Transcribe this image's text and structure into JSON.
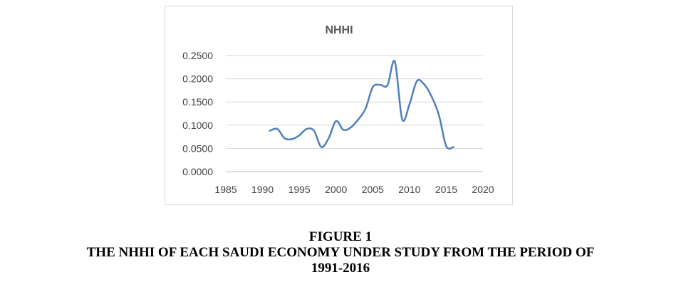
{
  "chart_data": {
    "type": "line",
    "title": "NHHI",
    "xlabel": "",
    "ylabel": "",
    "xlim": [
      1985,
      2020
    ],
    "ylim": [
      0,
      0.25
    ],
    "x_ticks": [
      "1985",
      "1990",
      "1995",
      "2000",
      "2005",
      "2010",
      "2015",
      "2020"
    ],
    "y_ticks": [
      "0.0000",
      "0.0500",
      "0.1000",
      "0.1500",
      "0.2000",
      "0.2500"
    ],
    "grid": "horizontal",
    "legend": "none",
    "series": [
      {
        "name": "",
        "color": "#4f7fba",
        "x": [
          1991,
          1992,
          1993,
          1994,
          1995,
          1996,
          1997,
          1998,
          1999,
          2000,
          2001,
          2002,
          2003,
          2004,
          2005,
          2006,
          2007,
          2008,
          2009,
          2010,
          2011,
          2012,
          2013,
          2014,
          2015,
          2016
        ],
        "y": [
          0.088,
          0.092,
          0.072,
          0.07,
          0.078,
          0.092,
          0.088,
          0.053,
          0.072,
          0.109,
          0.09,
          0.095,
          0.112,
          0.135,
          0.182,
          0.187,
          0.186,
          0.237,
          0.113,
          0.145,
          0.195,
          0.188,
          0.162,
          0.122,
          0.055,
          0.053
        ]
      }
    ]
  },
  "caption": {
    "line1": "FIGURE 1",
    "line2": "THE NHHI OF EACH SAUDI ECONOMY UNDER STUDY FROM THE PERIOD OF",
    "line3": "1991-2016"
  }
}
